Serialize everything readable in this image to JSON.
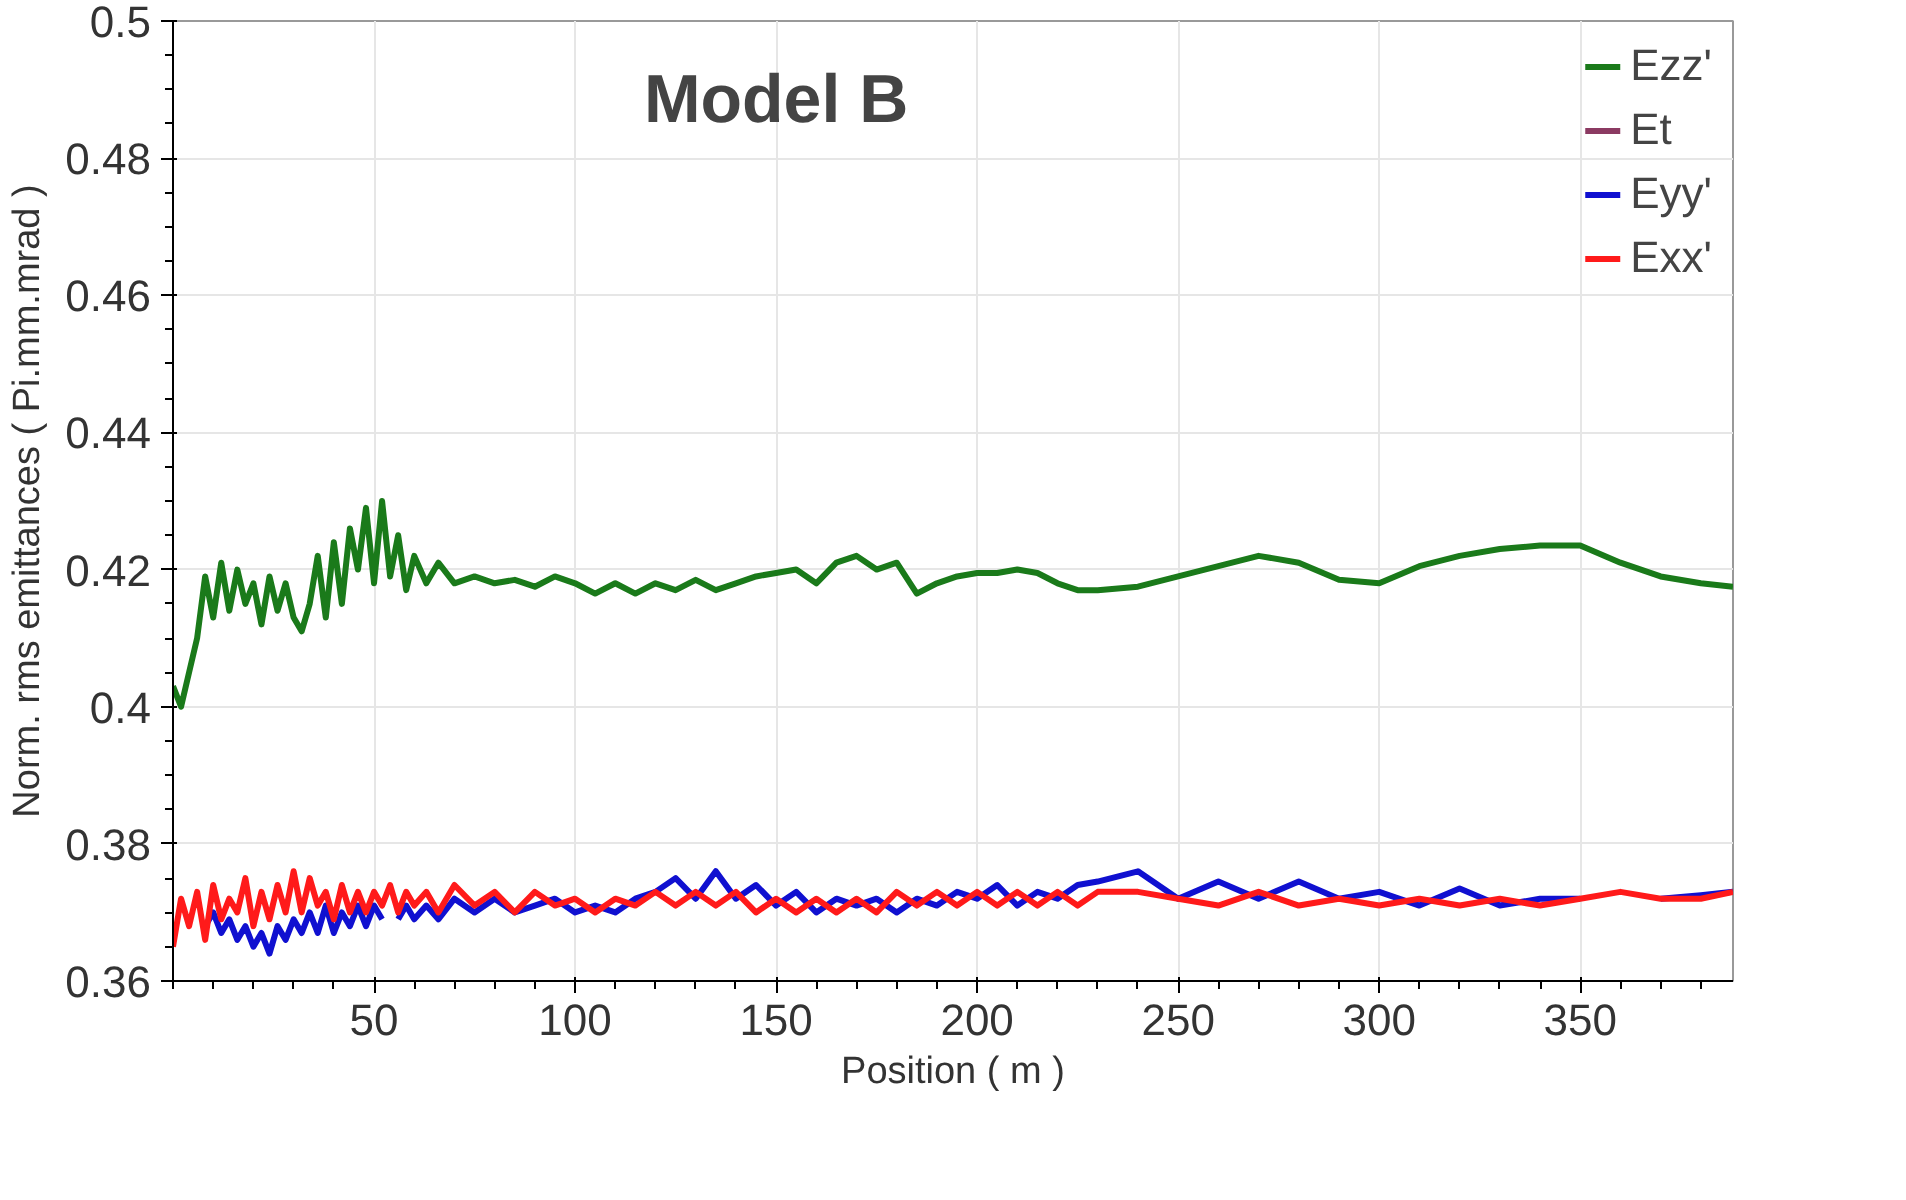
{
  "chart_data": {
    "type": "line",
    "title": "Model B",
    "xlabel": "Position ( m )",
    "ylabel": "Norm. rms emittances ( Pi.mm.mrad )",
    "xlim": [
      0,
      388
    ],
    "xticks": [
      50,
      100,
      150,
      200,
      250,
      300,
      350
    ],
    "ylim": [
      0.36,
      0.5
    ],
    "yticks": [
      0.36,
      0.38,
      0.4,
      0.42,
      0.44,
      0.46,
      0.48,
      0.5
    ],
    "grid": true,
    "legend": "top right",
    "marker": "none",
    "line_style": "solid",
    "x": [
      0,
      2,
      4,
      6,
      8,
      10,
      12,
      14,
      16,
      18,
      20,
      22,
      24,
      26,
      28,
      30,
      32,
      34,
      36,
      38,
      40,
      42,
      44,
      46,
      48,
      50,
      52,
      54,
      56,
      58,
      60,
      63,
      66,
      70,
      75,
      80,
      85,
      90,
      95,
      100,
      105,
      110,
      115,
      120,
      125,
      130,
      135,
      140,
      145,
      150,
      155,
      160,
      165,
      170,
      175,
      180,
      185,
      190,
      195,
      200,
      205,
      210,
      215,
      220,
      225,
      230,
      240,
      250,
      260,
      270,
      280,
      290,
      300,
      310,
      320,
      330,
      340,
      350,
      360,
      370,
      380,
      388
    ],
    "series": [
      {
        "name": "Ezz'",
        "color": "#1a7a1a",
        "values": [
          0.403,
          0.4,
          0.405,
          0.41,
          0.419,
          0.413,
          0.421,
          0.414,
          0.42,
          0.415,
          0.418,
          0.412,
          0.419,
          0.414,
          0.418,
          0.413,
          0.411,
          0.415,
          0.422,
          0.413,
          0.424,
          0.415,
          0.426,
          0.42,
          0.429,
          0.418,
          0.43,
          0.419,
          0.425,
          0.417,
          0.422,
          0.418,
          0.421,
          0.418,
          0.419,
          0.418,
          0.4185,
          0.4175,
          0.419,
          0.418,
          0.4165,
          0.418,
          0.4165,
          0.418,
          0.417,
          0.4185,
          0.417,
          0.418,
          0.419,
          0.4195,
          0.42,
          0.418,
          0.421,
          0.422,
          0.42,
          0.421,
          0.4165,
          0.418,
          0.419,
          0.4195,
          0.4195,
          0.42,
          0.4195,
          0.418,
          0.417,
          0.417,
          0.4175,
          0.419,
          0.4205,
          0.422,
          0.421,
          0.4185,
          0.418,
          0.4205,
          0.422,
          0.423,
          0.4235,
          0.4235,
          0.421,
          0.419,
          0.418,
          0.4175
        ]
      },
      {
        "name": "Et",
        "color": "#8b3a62",
        "values": [
          null,
          null,
          null,
          null,
          null,
          null,
          null,
          null,
          null,
          null,
          null,
          null,
          null,
          null,
          null,
          null,
          null,
          null,
          null,
          null,
          null,
          null,
          null,
          null,
          null,
          null,
          null,
          null,
          null,
          null,
          null,
          null,
          null,
          null,
          null,
          null,
          null,
          null,
          null,
          null,
          null,
          null,
          null,
          null,
          null,
          null,
          null,
          null,
          null,
          null,
          null,
          null,
          null,
          null,
          null,
          null,
          null,
          null,
          null,
          null,
          null,
          null,
          null,
          null,
          null,
          null,
          null,
          null,
          null,
          null,
          null,
          null,
          null,
          null,
          null,
          null,
          null,
          null,
          null,
          null,
          null,
          null
        ]
      },
      {
        "name": "Eyy'",
        "color": "#1010d0",
        "values": [
          null,
          null,
          null,
          null,
          0.368,
          0.37,
          0.367,
          0.369,
          0.366,
          0.368,
          0.365,
          0.367,
          0.364,
          0.368,
          0.366,
          0.369,
          0.367,
          0.37,
          0.367,
          0.371,
          0.367,
          0.37,
          0.368,
          0.371,
          0.368,
          0.371,
          0.369,
          null,
          0.369,
          0.371,
          0.369,
          0.371,
          0.369,
          0.372,
          0.37,
          0.372,
          0.37,
          0.371,
          0.372,
          0.37,
          0.371,
          0.37,
          0.372,
          0.373,
          0.375,
          0.372,
          0.376,
          0.372,
          0.374,
          0.371,
          0.373,
          0.37,
          0.372,
          0.371,
          0.372,
          0.37,
          0.372,
          0.371,
          0.373,
          0.372,
          0.374,
          0.371,
          0.373,
          0.372,
          0.374,
          0.3745,
          0.376,
          0.372,
          0.3745,
          0.372,
          0.3745,
          0.372,
          0.373,
          0.371,
          0.3735,
          0.371,
          0.372,
          0.372,
          null,
          0.372,
          0.3725,
          0.373
        ]
      },
      {
        "name": "Exx'",
        "color": "#ff1a1a",
        "values": [
          0.365,
          0.372,
          0.368,
          0.373,
          0.366,
          0.374,
          0.369,
          0.372,
          0.37,
          0.375,
          0.368,
          0.373,
          0.369,
          0.374,
          0.37,
          0.376,
          0.37,
          0.375,
          0.371,
          0.373,
          0.369,
          0.374,
          0.37,
          0.373,
          0.37,
          0.373,
          0.371,
          0.374,
          0.37,
          0.373,
          0.371,
          0.373,
          0.37,
          0.374,
          0.371,
          0.373,
          0.37,
          0.373,
          0.371,
          0.372,
          0.37,
          0.372,
          0.371,
          0.373,
          0.371,
          0.373,
          0.371,
          0.373,
          0.37,
          0.372,
          0.37,
          0.372,
          0.37,
          0.372,
          0.37,
          0.373,
          0.371,
          0.373,
          0.371,
          0.373,
          0.371,
          0.373,
          0.371,
          0.373,
          0.371,
          0.373,
          0.373,
          0.372,
          0.371,
          0.373,
          0.371,
          0.372,
          0.371,
          0.372,
          0.371,
          0.372,
          0.371,
          0.372,
          0.373,
          0.372,
          0.372,
          0.373
        ]
      }
    ]
  }
}
